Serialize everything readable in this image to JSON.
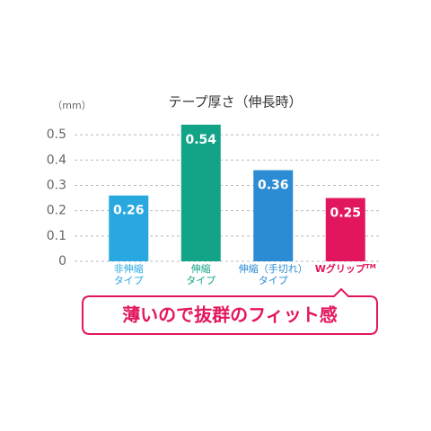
{
  "chart_data": {
    "type": "bar",
    "title": "テープ厚さ（伸長時）",
    "y_unit": "（mm）",
    "categories": [
      [
        "非伸縮",
        "タイプ"
      ],
      [
        "伸縮",
        "タイプ"
      ],
      [
        "伸縮（手切れ）",
        "タイプ"
      ],
      [
        "Wグリップ",
        "TM"
      ]
    ],
    "values": [
      0.26,
      0.54,
      0.36,
      0.25
    ],
    "colors": [
      "#29a8e0",
      "#13a488",
      "#2b8bd3",
      "#e2165e"
    ],
    "ylim": [
      0,
      0.55
    ],
    "yticks": [
      0,
      0.1,
      0.2,
      0.3,
      0.4,
      0.5
    ],
    "grid": true,
    "callout": "薄いので抜群のフィット感"
  }
}
